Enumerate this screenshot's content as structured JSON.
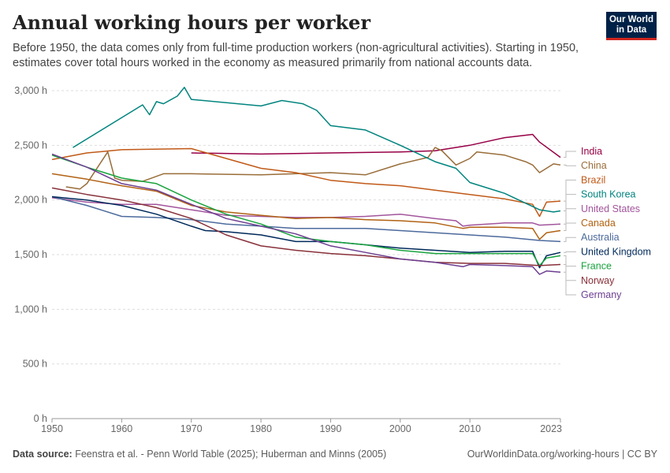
{
  "header": {
    "title": "Annual working hours per worker",
    "subtitle": "Before 1950, the data comes only from full-time production workers (non-agricultural activities). Starting in 1950, estimates cover total hours worked in the economy as measured primarily from national accounts data."
  },
  "logo": {
    "line1": "Our World",
    "line2": "in Data",
    "bg_color": "#002147",
    "accent_color": "#ce261e"
  },
  "footer": {
    "source_label": "Data source:",
    "source_text": "Feenstra et al. - Penn World Table (2025); Huberman and Minns (2005)",
    "url_license": "OurWorldinData.org/working-hours | CC BY"
  },
  "chart_data": {
    "type": "line",
    "title": "Annual working hours per worker",
    "xlim": [
      1950,
      2023
    ],
    "ylim": [
      0,
      3000
    ],
    "x_ticks": [
      1950,
      1960,
      1970,
      1980,
      1990,
      2000,
      2010,
      2023
    ],
    "y_ticks": [
      0,
      500,
      1000,
      1500,
      2000,
      2500,
      3000
    ],
    "y_tick_labels": [
      "0 h",
      "500 h",
      "1,000 h",
      "1,500 h",
      "2,000 h",
      "2,500 h",
      "3,000 h"
    ],
    "grid": "horizontal dashed",
    "legend": "right, inline labels",
    "series": [
      {
        "name": "India",
        "color": "#970046",
        "points": [
          [
            1970,
            2430
          ],
          [
            1980,
            2420
          ],
          [
            1990,
            2430
          ],
          [
            2000,
            2440
          ],
          [
            2005,
            2450
          ],
          [
            2010,
            2500
          ],
          [
            2015,
            2570
          ],
          [
            2019,
            2600
          ],
          [
            2020,
            2530
          ],
          [
            2023,
            2390
          ]
        ]
      },
      {
        "name": "China",
        "color": "#996d39",
        "points": [
          [
            1952,
            2120
          ],
          [
            1954,
            2100
          ],
          [
            1955,
            2150
          ],
          [
            1958,
            2440
          ],
          [
            1959,
            2200
          ],
          [
            1960,
            2180
          ],
          [
            1963,
            2170
          ],
          [
            1966,
            2240
          ],
          [
            1970,
            2240
          ],
          [
            1980,
            2230
          ],
          [
            1990,
            2250
          ],
          [
            1995,
            2230
          ],
          [
            2000,
            2330
          ],
          [
            2004,
            2390
          ],
          [
            2005,
            2480
          ],
          [
            2006,
            2450
          ],
          [
            2008,
            2320
          ],
          [
            2010,
            2380
          ],
          [
            2011,
            2440
          ],
          [
            2015,
            2410
          ],
          [
            2018,
            2350
          ],
          [
            2019,
            2320
          ],
          [
            2020,
            2250
          ],
          [
            2022,
            2330
          ],
          [
            2023,
            2320
          ]
        ]
      },
      {
        "name": "Brazil",
        "color": "#c05917",
        "points": [
          [
            1950,
            2370
          ],
          [
            1955,
            2430
          ],
          [
            1960,
            2460
          ],
          [
            1970,
            2470
          ],
          [
            1975,
            2380
          ],
          [
            1980,
            2290
          ],
          [
            1985,
            2250
          ],
          [
            1990,
            2180
          ],
          [
            1995,
            2150
          ],
          [
            2000,
            2130
          ],
          [
            2005,
            2090
          ],
          [
            2010,
            2050
          ],
          [
            2015,
            2010
          ],
          [
            2019,
            1960
          ],
          [
            2020,
            1850
          ],
          [
            2021,
            1980
          ],
          [
            2023,
            1990
          ]
        ]
      },
      {
        "name": "South Korea",
        "color": "#00847e",
        "points": [
          [
            1953,
            2480
          ],
          [
            1963,
            2870
          ],
          [
            1964,
            2780
          ],
          [
            1965,
            2900
          ],
          [
            1966,
            2880
          ],
          [
            1968,
            2950
          ],
          [
            1969,
            3030
          ],
          [
            1970,
            2920
          ],
          [
            1980,
            2860
          ],
          [
            1983,
            2910
          ],
          [
            1986,
            2880
          ],
          [
            1988,
            2820
          ],
          [
            1990,
            2680
          ],
          [
            1995,
            2640
          ],
          [
            2000,
            2500
          ],
          [
            2005,
            2350
          ],
          [
            2008,
            2290
          ],
          [
            2010,
            2160
          ],
          [
            2015,
            2060
          ],
          [
            2020,
            1910
          ],
          [
            2022,
            1890
          ],
          [
            2023,
            1900
          ]
        ]
      },
      {
        "name": "United States",
        "color": "#a2559c",
        "points": [
          [
            1950,
            2020
          ],
          [
            1955,
            1980
          ],
          [
            1960,
            1960
          ],
          [
            1965,
            1960
          ],
          [
            1970,
            1910
          ],
          [
            1975,
            1860
          ],
          [
            1980,
            1850
          ],
          [
            1985,
            1840
          ],
          [
            1990,
            1840
          ],
          [
            1995,
            1850
          ],
          [
            2000,
            1870
          ],
          [
            2005,
            1830
          ],
          [
            2008,
            1810
          ],
          [
            2009,
            1760
          ],
          [
            2010,
            1770
          ],
          [
            2015,
            1790
          ],
          [
            2019,
            1790
          ],
          [
            2020,
            1770
          ],
          [
            2023,
            1780
          ]
        ]
      },
      {
        "name": "Canada",
        "color": "#b16214",
        "points": [
          [
            1950,
            2240
          ],
          [
            1955,
            2190
          ],
          [
            1960,
            2130
          ],
          [
            1965,
            2080
          ],
          [
            1970,
            1950
          ],
          [
            1975,
            1890
          ],
          [
            1980,
            1860
          ],
          [
            1985,
            1830
          ],
          [
            1990,
            1840
          ],
          [
            1995,
            1820
          ],
          [
            2000,
            1810
          ],
          [
            2005,
            1790
          ],
          [
            2009,
            1740
          ],
          [
            2010,
            1750
          ],
          [
            2015,
            1750
          ],
          [
            2019,
            1740
          ],
          [
            2020,
            1640
          ],
          [
            2021,
            1700
          ],
          [
            2023,
            1720
          ]
        ]
      },
      {
        "name": "Australia",
        "color": "#4c6a9c",
        "points": [
          [
            1950,
            2030
          ],
          [
            1955,
            1950
          ],
          [
            1960,
            1850
          ],
          [
            1965,
            1840
          ],
          [
            1970,
            1820
          ],
          [
            1975,
            1780
          ],
          [
            1980,
            1760
          ],
          [
            1985,
            1740
          ],
          [
            1990,
            1740
          ],
          [
            1995,
            1740
          ],
          [
            2000,
            1720
          ],
          [
            2005,
            1700
          ],
          [
            2010,
            1680
          ],
          [
            2015,
            1660
          ],
          [
            2020,
            1630
          ],
          [
            2023,
            1620
          ]
        ]
      },
      {
        "name": "United Kingdom",
        "color": "#00295b",
        "points": [
          [
            1950,
            2030
          ],
          [
            1955,
            2000
          ],
          [
            1960,
            1950
          ],
          [
            1965,
            1870
          ],
          [
            1970,
            1760
          ],
          [
            1972,
            1720
          ],
          [
            1975,
            1710
          ],
          [
            1980,
            1680
          ],
          [
            1985,
            1620
          ],
          [
            1990,
            1620
          ],
          [
            1995,
            1590
          ],
          [
            2000,
            1560
          ],
          [
            2005,
            1540
          ],
          [
            2010,
            1520
          ],
          [
            2015,
            1530
          ],
          [
            2019,
            1530
          ],
          [
            2020,
            1380
          ],
          [
            2021,
            1490
          ],
          [
            2023,
            1520
          ]
        ]
      },
      {
        "name": "France",
        "color": "#18a33d",
        "points": [
          [
            1950,
            2410
          ],
          [
            1955,
            2300
          ],
          [
            1960,
            2200
          ],
          [
            1965,
            2150
          ],
          [
            1970,
            2000
          ],
          [
            1975,
            1870
          ],
          [
            1980,
            1780
          ],
          [
            1985,
            1660
          ],
          [
            1990,
            1620
          ],
          [
            1995,
            1590
          ],
          [
            2000,
            1540
          ],
          [
            2005,
            1510
          ],
          [
            2010,
            1510
          ],
          [
            2015,
            1510
          ],
          [
            2019,
            1510
          ],
          [
            2020,
            1400
          ],
          [
            2021,
            1470
          ],
          [
            2023,
            1490
          ]
        ]
      },
      {
        "name": "Norway",
        "color": "#883039",
        "points": [
          [
            1950,
            2110
          ],
          [
            1955,
            2050
          ],
          [
            1960,
            2000
          ],
          [
            1965,
            1930
          ],
          [
            1970,
            1830
          ],
          [
            1975,
            1680
          ],
          [
            1980,
            1580
          ],
          [
            1985,
            1540
          ],
          [
            1990,
            1510
          ],
          [
            1995,
            1490
          ],
          [
            2000,
            1460
          ],
          [
            2005,
            1430
          ],
          [
            2010,
            1420
          ],
          [
            2015,
            1420
          ],
          [
            2020,
            1400
          ],
          [
            2023,
            1410
          ]
        ]
      },
      {
        "name": "Germany",
        "color": "#6d3e91",
        "points": [
          [
            1950,
            2420
          ],
          [
            1955,
            2300
          ],
          [
            1960,
            2150
          ],
          [
            1965,
            2090
          ],
          [
            1970,
            1960
          ],
          [
            1975,
            1830
          ],
          [
            1980,
            1760
          ],
          [
            1985,
            1690
          ],
          [
            1990,
            1580
          ],
          [
            1995,
            1520
          ],
          [
            2000,
            1460
          ],
          [
            2005,
            1430
          ],
          [
            2009,
            1390
          ],
          [
            2010,
            1410
          ],
          [
            2015,
            1400
          ],
          [
            2019,
            1390
          ],
          [
            2020,
            1320
          ],
          [
            2021,
            1350
          ],
          [
            2023,
            1340
          ]
        ]
      }
    ]
  }
}
